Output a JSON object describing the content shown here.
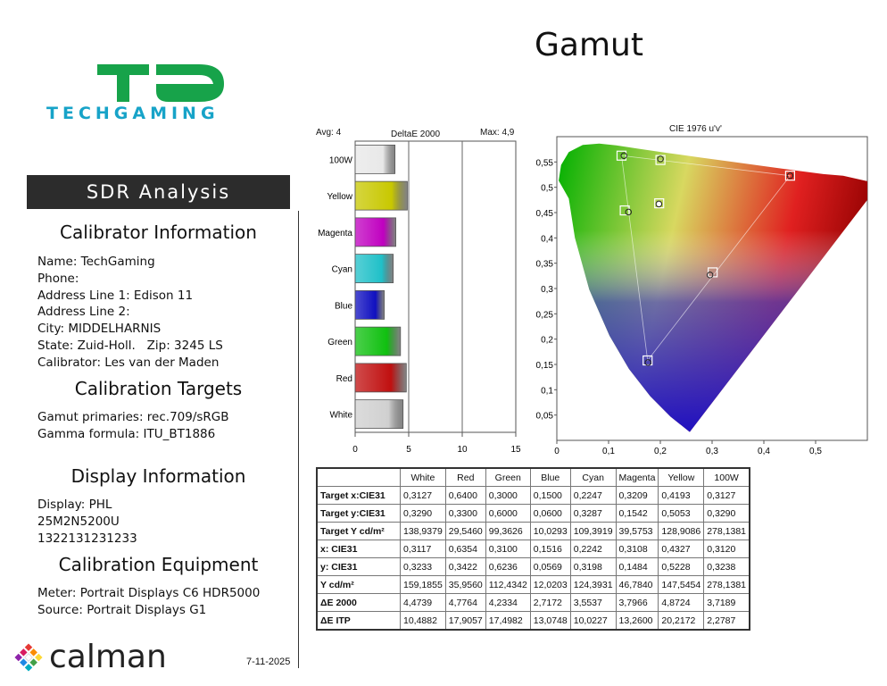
{
  "page_title": "Gamut",
  "logo": {
    "text": "TECHGAMING",
    "mark": "TG"
  },
  "banner": "SDR Analysis",
  "calibrator": {
    "heading": "Calibrator Information",
    "lines": [
      "Name: TechGaming",
      "Phone:",
      "Address Line 1: Edison 11",
      "Address Line 2:",
      "City: MIDDELHARNIS",
      "State: Zuid-Holl.   Zip: 3245 LS",
      "Calibrator: Les van der Maden"
    ]
  },
  "targets": {
    "heading": "Calibration Targets",
    "lines": [
      "Gamut primaries: rec.709/sRGB",
      "Gamma formula: ITU_BT1886"
    ]
  },
  "display": {
    "heading": "Display Information",
    "lines": [
      "Display: PHL",
      "25M2N5200U",
      "1322131231233"
    ]
  },
  "equipment": {
    "heading": "Calibration Equipment",
    "lines": [
      "Meter: Portrait Displays C6 HDR5000",
      "Source: Portrait Displays G1"
    ]
  },
  "footer": {
    "brand": "calman",
    "date": "7-11-2025"
  },
  "chart_data": [
    {
      "type": "bar",
      "orientation": "horizontal",
      "title": "DeltaE 2000",
      "avg_label": "Avg: 4",
      "max_label": "Max: 4,9",
      "categories": [
        "100W",
        "Yellow",
        "Magenta",
        "Cyan",
        "Blue",
        "Green",
        "Red",
        "White"
      ],
      "values": [
        3.7189,
        4.8724,
        3.7966,
        3.5537,
        2.7172,
        4.2334,
        4.7764,
        4.4739
      ],
      "colors": [
        "#e8e8e8",
        "#c8c800",
        "#c000c0",
        "#20c0c8",
        "#1010c0",
        "#10c010",
        "#c01010",
        "#d0d0d0"
      ],
      "xlim": [
        0,
        15
      ],
      "ticks": [
        "0",
        "5",
        "10",
        "15"
      ]
    },
    {
      "type": "scatter",
      "title": "CIE 1976 u'v'",
      "xlim": [
        0,
        0.6
      ],
      "ylim": [
        0,
        0.6
      ],
      "x_ticks": [
        "0",
        "0,1",
        "0,2",
        "0,3",
        "0,4",
        "0,5"
      ],
      "y_ticks": [
        "0",
        "0,05",
        "0,1",
        "0,15",
        "0,2",
        "0,25",
        "0,3",
        "0,35",
        "0,4",
        "0,45",
        "0,5",
        "0,55"
      ],
      "targets": [
        [
          0.4507,
          0.5229
        ],
        [
          0.125,
          0.5625
        ],
        [
          0.1754,
          0.1579
        ],
        [
          0.2002,
          0.5539
        ],
        [
          0.1312,
          0.4543
        ],
        [
          0.3011,
          0.3319
        ],
        [
          0.1978,
          0.4683
        ]
      ],
      "measured": [
        [
          0.4507,
          0.5229
        ],
        [
          0.1297,
          0.5624
        ],
        [
          0.1763,
          0.1538
        ],
        [
          0.2002,
          0.556
        ],
        [
          0.1384,
          0.4511
        ],
        [
          0.296,
          0.3268
        ],
        [
          0.1972,
          0.467
        ]
      ]
    }
  ],
  "table": {
    "headers": [
      "",
      "White",
      "Red",
      "Green",
      "Blue",
      "Cyan",
      "Magenta",
      "Yellow",
      "100W"
    ],
    "rows": [
      {
        "label": "Target x:CIE31",
        "values": [
          "0,3127",
          "0,6400",
          "0,3000",
          "0,1500",
          "0,2247",
          "0,3209",
          "0,4193",
          "0,3127"
        ]
      },
      {
        "label": "Target y:CIE31",
        "values": [
          "0,3290",
          "0,3300",
          "0,6000",
          "0,0600",
          "0,3287",
          "0,1542",
          "0,5053",
          "0,3290"
        ]
      },
      {
        "label": "Target Y cd/m²",
        "values": [
          "138,9379",
          "29,5460",
          "99,3626",
          "10,0293",
          "109,3919",
          "39,5753",
          "128,9086",
          "278,1381"
        ]
      },
      {
        "label": "x: CIE31",
        "values": [
          "0,3117",
          "0,6354",
          "0,3100",
          "0,1516",
          "0,2242",
          "0,3108",
          "0,4327",
          "0,3120"
        ]
      },
      {
        "label": "y: CIE31",
        "values": [
          "0,3233",
          "0,3422",
          "0,6236",
          "0,0569",
          "0,3198",
          "0,1484",
          "0,5228",
          "0,3238"
        ]
      },
      {
        "label": "Y cd/m²",
        "values": [
          "159,1855",
          "35,9560",
          "112,4342",
          "12,0203",
          "124,3931",
          "46,7840",
          "147,5454",
          "278,1381"
        ]
      },
      {
        "label": "ΔE 2000",
        "values": [
          "4,4739",
          "4,7764",
          "4,2334",
          "2,7172",
          "3,5537",
          "3,7966",
          "4,8724",
          "3,7189"
        ]
      },
      {
        "label": "ΔE ITP",
        "values": [
          "10,4882",
          "17,9057",
          "17,4982",
          "13,0748",
          "10,0227",
          "13,2600",
          "20,2172",
          "2,2787"
        ]
      }
    ]
  }
}
